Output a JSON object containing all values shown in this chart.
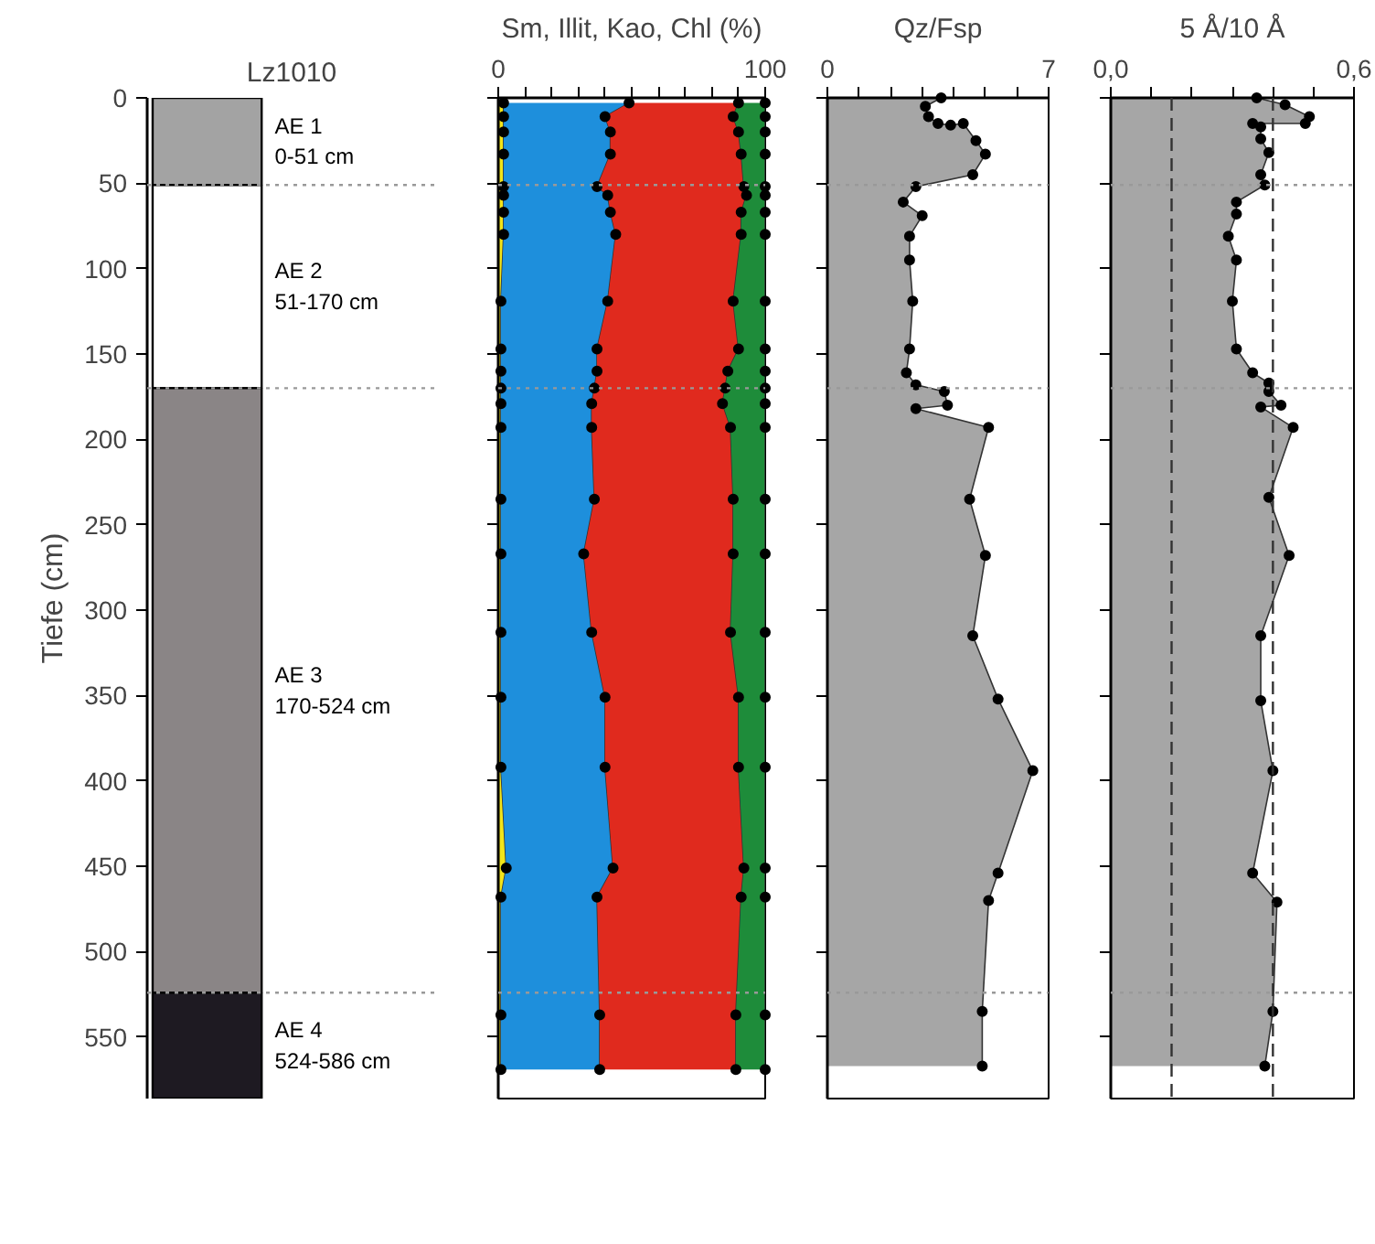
{
  "chart_data": [
    {
      "type": "bar",
      "stacked": true,
      "title": "Lz1010",
      "ylabel": "Tiefe (cm)",
      "categories": [
        null
      ],
      "tick_labels": "y",
      "series": [
        {
          "color": "#a3a3a3",
          "values": [
            51
          ]
        },
        {
          "color": "#ffffff",
          "values": [
            119
          ]
        },
        {
          "color": "#8a8586",
          "values": [
            354
          ]
        },
        {
          "color": "#1e1a22",
          "values": [
            62
          ]
        }
      ],
      "ylim": [
        586,
        0
      ],
      "yticks": [
        0,
        50,
        100,
        150,
        200,
        250,
        300,
        350,
        400,
        450,
        500,
        550
      ],
      "annotations": [
        "AE 1\n0-51 cm",
        "AE 2\n51-170 cm",
        "AE 3\n170-524 cm",
        "AE 4\n524-586 cm"
      ],
      "ref_lines": [
        {
          "axis": "y",
          "value": 51,
          "color": "#999999",
          "line_style": "dotted"
        },
        {
          "axis": "y",
          "value": 170,
          "color": "#999999",
          "line_style": "dotted"
        },
        {
          "axis": "y",
          "value": 524,
          "color": "#999999",
          "line_style": "dotted"
        }
      ]
    },
    {
      "type": "area",
      "stacked": true,
      "orientation": "horizontal",
      "title": "Sm, Illit, Kao, Chl (%)",
      "tick_labels": "x",
      "marker": "circle",
      "x": [
        3,
        11,
        20,
        33,
        52,
        57,
        67,
        80,
        119,
        147,
        160,
        170,
        179,
        193,
        235,
        267,
        313,
        351,
        392,
        451,
        468,
        537,
        569
      ],
      "series": [
        {
          "color": "#f2e51a",
          "values": [
            2,
            2,
            2,
            2,
            2,
            2,
            2,
            2,
            1,
            1,
            1,
            1,
            1,
            1,
            1,
            1,
            1,
            1,
            1,
            3,
            1,
            1,
            1
          ]
        },
        {
          "color": "#1e8fdc",
          "values": [
            47,
            38,
            40,
            40,
            35,
            39,
            40,
            42,
            40,
            36,
            36,
            35,
            34,
            34,
            35,
            31,
            34,
            39,
            39,
            40,
            36,
            37,
            37
          ]
        },
        {
          "color": "#e02a1e",
          "values": [
            41,
            48,
            48,
            49,
            55,
            52,
            49,
            47,
            47,
            53,
            49,
            49,
            49,
            52,
            52,
            56,
            52,
            50,
            50,
            49,
            54,
            51,
            51
          ]
        },
        {
          "color": "#1e8c3a",
          "values": [
            10,
            12,
            10,
            9,
            8,
            7,
            9,
            9,
            12,
            10,
            14,
            15,
            16,
            13,
            12,
            12,
            13,
            10,
            10,
            8,
            9,
            11,
            11
          ]
        }
      ],
      "xlim": [
        0,
        100
      ],
      "xticks": [
        0,
        {
          "value": 10,
          "label": null
        },
        {
          "value": 20,
          "label": null
        },
        {
          "value": 30,
          "label": null
        },
        {
          "value": 40,
          "label": null
        },
        {
          "value": 50,
          "label": null
        },
        {
          "value": 60,
          "label": null
        },
        {
          "value": 70,
          "label": null
        },
        {
          "value": 80,
          "label": null
        },
        {
          "value": 90,
          "label": null
        },
        100
      ],
      "ylim": [
        586,
        0
      ],
      "yticks": [
        0,
        50,
        100,
        150,
        200,
        250,
        300,
        350,
        400,
        450,
        500,
        550
      ],
      "ref_lines": [
        {
          "axis": "y",
          "value": 51,
          "color": "#999999",
          "line_style": "dotted"
        },
        {
          "axis": "y",
          "value": 170,
          "color": "#999999",
          "line_style": "dotted"
        },
        {
          "axis": "y",
          "value": 524,
          "color": "#999999",
          "line_style": "dotted"
        }
      ]
    },
    {
      "type": "area",
      "orientation": "horizontal",
      "title": "Qz/Fsp",
      "tick_labels": "x",
      "marker": "circle",
      "x": [
        0,
        5,
        11,
        15,
        16,
        15,
        25,
        33,
        45,
        52,
        61,
        69,
        81,
        95,
        119,
        147,
        161,
        168,
        172,
        180,
        182,
        193,
        235,
        268,
        315,
        352,
        394,
        454,
        470,
        535,
        567
      ],
      "series": [
        {
          "color": "#a6a6a6",
          "values": [
            3.6,
            3.1,
            3.2,
            3.5,
            3.9,
            4.3,
            4.7,
            5.0,
            4.6,
            2.8,
            2.4,
            3.0,
            2.6,
            2.6,
            2.7,
            2.6,
            2.5,
            2.8,
            3.7,
            3.8,
            2.8,
            5.1,
            4.5,
            5.0,
            4.6,
            5.4,
            6.5,
            5.4,
            5.1,
            4.9,
            4.9
          ]
        }
      ],
      "xlim": [
        0,
        7
      ],
      "xticks": [
        0,
        {
          "value": 1,
          "label": null
        },
        {
          "value": 2,
          "label": null
        },
        {
          "value": 3,
          "label": null
        },
        {
          "value": 4,
          "label": null
        },
        {
          "value": 5,
          "label": null
        },
        {
          "value": 6,
          "label": null
        },
        7
      ],
      "ylim": [
        586,
        0
      ],
      "yticks": [
        0,
        50,
        100,
        150,
        200,
        250,
        300,
        350,
        400,
        450,
        500,
        550
      ],
      "ref_lines": [
        {
          "axis": "y",
          "value": 51,
          "color": "#999999",
          "line_style": "dotted"
        },
        {
          "axis": "y",
          "value": 170,
          "color": "#999999",
          "line_style": "dotted"
        },
        {
          "axis": "y",
          "value": 524,
          "color": "#999999",
          "line_style": "dotted"
        }
      ]
    },
    {
      "type": "area",
      "orientation": "horizontal",
      "title": "5 Å/10 Å",
      "tick_labels": "x",
      "marker": "circle",
      "x": [
        0,
        4,
        11,
        15,
        15,
        17,
        24,
        32,
        45,
        51,
        61,
        68,
        81,
        95,
        119,
        147,
        161,
        167,
        172,
        180,
        181,
        193,
        234,
        268,
        315,
        353,
        394,
        454,
        471,
        535,
        567
      ],
      "series": [
        {
          "color": "#a6a6a6",
          "values": [
            0.36,
            0.43,
            0.49,
            0.48,
            0.35,
            0.37,
            0.37,
            0.39,
            0.37,
            0.38,
            0.31,
            0.31,
            0.29,
            0.31,
            0.3,
            0.31,
            0.35,
            0.39,
            0.39,
            0.42,
            0.37,
            0.45,
            0.39,
            0.44,
            0.37,
            0.37,
            0.4,
            0.35,
            0.41,
            0.4,
            0.38
          ]
        }
      ],
      "xlim": [
        0,
        0.6
      ],
      "xticks": [
        {
          "value": 0,
          "label": "0,0"
        },
        {
          "value": 0.1,
          "label": null
        },
        {
          "value": 0.2,
          "label": null
        },
        {
          "value": 0.3,
          "label": null
        },
        {
          "value": 0.4,
          "label": null
        },
        {
          "value": 0.5,
          "label": null
        },
        {
          "value": 0.6,
          "label": "0,6"
        }
      ],
      "ylim": [
        586,
        0
      ],
      "yticks": [
        0,
        50,
        100,
        150,
        200,
        250,
        300,
        350,
        400,
        450,
        500,
        550
      ],
      "ref_lines": [
        {
          "axis": "x",
          "value": 0.15,
          "color": "#333333",
          "line_style": "dashed"
        },
        {
          "axis": "x",
          "value": 0.4,
          "color": "#333333",
          "line_style": "dashed"
        },
        {
          "axis": "y",
          "value": 51,
          "color": "#999999",
          "line_style": "dotted"
        },
        {
          "axis": "y",
          "value": 170,
          "color": "#999999",
          "line_style": "dotted"
        },
        {
          "axis": "y",
          "value": 524,
          "color": "#999999",
          "line_style": "dotted"
        }
      ]
    }
  ]
}
